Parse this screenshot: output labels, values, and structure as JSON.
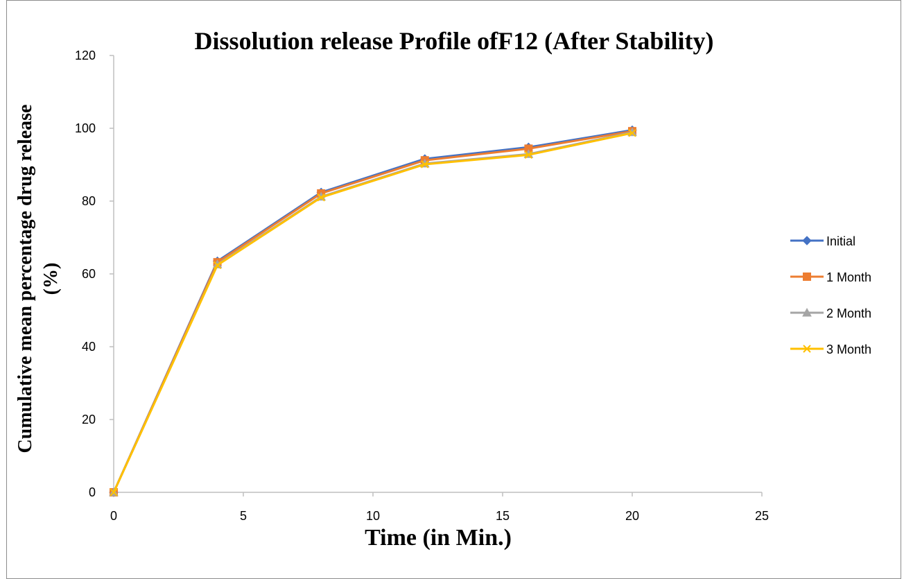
{
  "chart_data": {
    "type": "line",
    "title": "Dissolution release Profile ofF12 (After Stability)",
    "xlabel": "Time (in Min.)",
    "ylabel_line1": "Cumulative mean percentage drug release",
    "ylabel_line2": "(%)",
    "xlim": [
      0,
      25
    ],
    "ylim": [
      0,
      120
    ],
    "xticks": [
      0,
      5,
      10,
      15,
      20,
      25
    ],
    "yticks": [
      0,
      20,
      40,
      60,
      80,
      100,
      120
    ],
    "grid": false,
    "legend_position": "right",
    "x": [
      0,
      4,
      8,
      12,
      16,
      20
    ],
    "series": [
      {
        "name": "Initial",
        "color": "#4472C4",
        "marker": "diamond",
        "values": [
          0,
          63.5,
          82.4,
          91.6,
          94.8,
          99.5
        ]
      },
      {
        "name": "1 Month",
        "color": "#ED7D31",
        "marker": "square",
        "values": [
          0,
          63.2,
          82.1,
          91.2,
          94.4,
          99.2
        ]
      },
      {
        "name": "2 Month",
        "color": "#A5A5A5",
        "marker": "triangle",
        "values": [
          0,
          62.6,
          81.2,
          90.3,
          92.9,
          98.9
        ]
      },
      {
        "name": "3 Month",
        "color": "#FFC000",
        "marker": "x",
        "values": [
          0,
          62.4,
          81.0,
          90.1,
          92.7,
          98.7
        ]
      }
    ]
  }
}
